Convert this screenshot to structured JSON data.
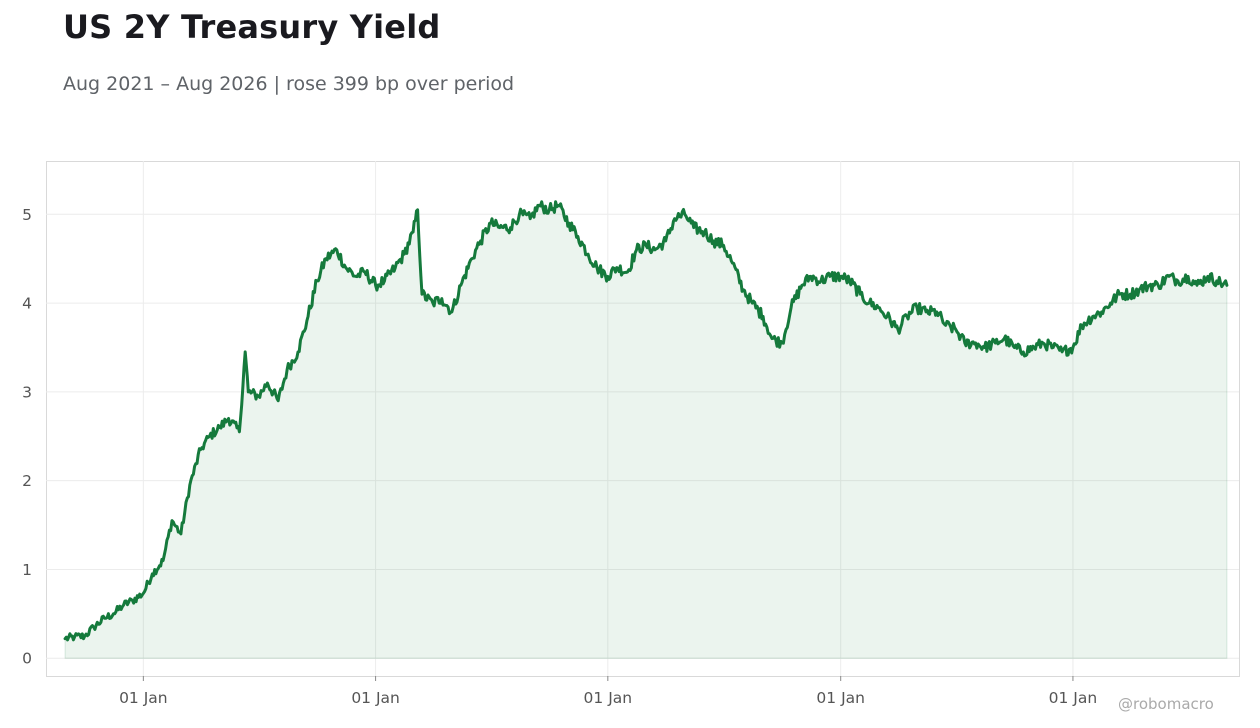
{
  "header": {
    "title": "US 2Y Treasury Yield",
    "subtitle": "Aug 2021 – Aug 2026 | rose 399 bp over period"
  },
  "footer": {
    "credit": "@robomacro"
  },
  "colors": {
    "line": "#157a3c",
    "fill": "#157a3c",
    "grid": "#ececec",
    "frame": "#d9d9d9"
  },
  "chart_data": {
    "type": "area",
    "title": "US 2Y Treasury Yield",
    "subtitle": "Aug 2021 – Aug 2026 | rose 399 bp over period",
    "xlabel": "",
    "ylabel": "",
    "xlim": [
      "2021-08-01",
      "2026-09-19"
    ],
    "ylim": [
      -0.2,
      5.6
    ],
    "grid": true,
    "legend": "none",
    "x_tick_dates": [
      "2022-01-01",
      "2023-01-01",
      "2024-01-01",
      "2025-01-01",
      "2026-01-01"
    ],
    "x_tick_labels": [
      "01 Jan",
      "01 Jan",
      "01 Jan",
      "01 Jan",
      "01 Jan"
    ],
    "y_ticks": [
      0,
      1,
      2,
      3,
      4,
      5
    ],
    "series": [
      {
        "x": [
          "2021-08-31",
          "2021-09-15",
          "2021-10-01",
          "2021-10-15",
          "2021-11-01",
          "2021-11-15",
          "2021-12-01",
          "2021-12-15",
          "2022-01-01",
          "2022-01-15",
          "2022-02-01",
          "2022-02-15",
          "2022-03-01",
          "2022-03-15",
          "2022-04-01",
          "2022-04-15",
          "2022-05-01",
          "2022-05-15",
          "2022-06-01",
          "2022-06-10",
          "2022-06-15",
          "2022-07-01",
          "2022-07-15",
          "2022-08-01",
          "2022-08-15",
          "2022-09-01",
          "2022-09-15",
          "2022-10-01",
          "2022-10-15",
          "2022-11-01",
          "2022-11-15",
          "2022-12-01",
          "2022-12-15",
          "2023-01-01",
          "2023-01-15",
          "2023-02-01",
          "2023-02-15",
          "2023-03-01",
          "2023-03-08",
          "2023-03-15",
          "2023-04-01",
          "2023-04-15",
          "2023-05-01",
          "2023-05-15",
          "2023-06-01",
          "2023-06-15",
          "2023-07-01",
          "2023-07-15",
          "2023-08-01",
          "2023-08-15",
          "2023-09-01",
          "2023-09-15",
          "2023-10-01",
          "2023-10-15",
          "2023-11-01",
          "2023-11-15",
          "2023-12-01",
          "2023-12-15",
          "2024-01-01",
          "2024-01-15",
          "2024-02-01",
          "2024-02-15",
          "2024-03-01",
          "2024-03-15",
          "2024-04-01",
          "2024-04-15",
          "2024-05-01",
          "2024-05-15",
          "2024-06-01",
          "2024-06-15",
          "2024-07-01",
          "2024-07-15",
          "2024-08-01",
          "2024-08-15",
          "2024-09-01",
          "2024-09-15",
          "2024-10-01",
          "2024-10-15",
          "2024-11-01",
          "2024-11-15",
          "2024-12-01",
          "2024-12-15",
          "2025-01-01",
          "2025-01-15",
          "2025-02-01",
          "2025-02-15",
          "2025-03-01",
          "2025-03-15",
          "2025-04-01",
          "2025-04-15",
          "2025-05-01",
          "2025-05-15",
          "2025-06-01",
          "2025-06-15",
          "2025-07-01",
          "2025-07-15",
          "2025-08-01",
          "2025-08-15",
          "2025-09-01",
          "2025-09-15",
          "2025-10-01",
          "2025-10-15",
          "2025-11-01",
          "2025-11-15",
          "2025-12-01",
          "2025-12-15",
          "2026-01-01",
          "2026-01-15",
          "2026-02-01",
          "2026-02-15",
          "2026-03-01",
          "2026-03-15",
          "2026-04-01",
          "2026-04-15",
          "2026-05-01",
          "2026-05-15",
          "2026-06-01",
          "2026-06-15",
          "2026-07-01",
          "2026-07-15",
          "2026-08-01",
          "2026-08-15",
          "2026-08-31"
        ],
        "values": [
          0.22,
          0.24,
          0.25,
          0.35,
          0.45,
          0.5,
          0.6,
          0.65,
          0.73,
          0.95,
          1.1,
          1.55,
          1.4,
          1.95,
          2.35,
          2.5,
          2.6,
          2.7,
          2.55,
          3.45,
          3.0,
          2.95,
          3.1,
          2.9,
          3.25,
          3.45,
          3.8,
          4.25,
          4.5,
          4.6,
          4.4,
          4.3,
          4.35,
          4.2,
          4.25,
          4.4,
          4.55,
          4.8,
          5.05,
          4.1,
          4.0,
          4.05,
          3.9,
          4.2,
          4.5,
          4.7,
          4.9,
          4.85,
          4.85,
          5.0,
          4.95,
          5.1,
          5.05,
          5.1,
          4.9,
          4.75,
          4.55,
          4.4,
          4.3,
          4.4,
          4.35,
          4.6,
          4.65,
          4.6,
          4.7,
          4.95,
          5.0,
          4.85,
          4.8,
          4.7,
          4.65,
          4.45,
          4.15,
          4.0,
          3.85,
          3.6,
          3.55,
          3.95,
          4.2,
          4.3,
          4.25,
          4.3,
          4.3,
          4.25,
          4.1,
          4.0,
          3.95,
          3.85,
          3.7,
          3.85,
          3.95,
          3.9,
          3.9,
          3.75,
          3.7,
          3.55,
          3.55,
          3.5,
          3.55,
          3.6,
          3.5,
          3.45,
          3.5,
          3.55,
          3.5,
          3.45,
          3.5,
          3.75,
          3.85,
          3.9,
          4.0,
          4.1,
          4.1,
          4.15,
          4.2,
          4.2,
          4.3,
          4.25,
          4.3,
          4.2,
          4.3,
          4.25,
          4.2
        ]
      }
    ]
  }
}
